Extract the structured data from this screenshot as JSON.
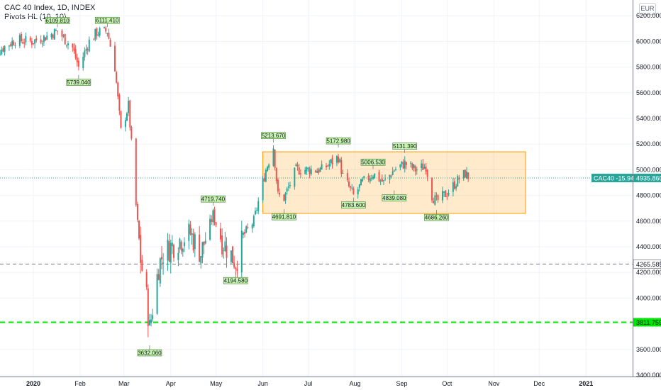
{
  "legend": {
    "title": "CAC 40 Index, 1D, INDEX",
    "indicator": "Pivots HL (10, 10)"
  },
  "currency": "EUR",
  "chart_data": {
    "type": "candlestick",
    "ylim": [
      3400,
      6300
    ],
    "y_ticks": [
      3400,
      3600,
      3800,
      4000,
      4200,
      4400,
      4600,
      4800,
      5000,
      5200,
      5400,
      5600,
      5800,
      6000,
      6200
    ],
    "y_tick_labels": [
      "3400.000",
      "3600.000",
      "3800.000",
      "4000.000",
      "4200.000",
      "4400.000",
      "4600.000",
      "4800.000",
      "5000.000",
      "5200.000",
      "5400.000",
      "5600.000",
      "5800.000",
      "6000.000",
      "6200.000"
    ],
    "x_ticks": [
      {
        "label": "2020",
        "date": "2020-01-01",
        "year": true
      },
      {
        "label": "Feb",
        "date": "2020-02-01"
      },
      {
        "label": "Mar",
        "date": "2020-03-01"
      },
      {
        "label": "Apr",
        "date": "2020-04-01"
      },
      {
        "label": "May",
        "date": "2020-05-01"
      },
      {
        "label": "Jun",
        "date": "2020-06-01"
      },
      {
        "label": "Jul",
        "date": "2020-07-01"
      },
      {
        "label": "Aug",
        "date": "2020-08-01"
      },
      {
        "label": "Sep",
        "date": "2020-09-01"
      },
      {
        "label": "Oct",
        "date": "2020-10-01"
      },
      {
        "label": "Nov",
        "date": "2020-11-01"
      },
      {
        "label": "Dec",
        "date": "2020-12-01"
      },
      {
        "label": "2021",
        "date": "2021-01-01",
        "year": true
      }
    ],
    "pivots": [
      {
        "date": "2020-01-17",
        "value": 6109.81,
        "label": "6109.810",
        "kind": "high"
      },
      {
        "date": "2020-01-31",
        "value": 5739.04,
        "label": "5739.040",
        "kind": "low"
      },
      {
        "date": "2020-02-19",
        "value": 6111.41,
        "label": "6111.410",
        "kind": "high"
      },
      {
        "date": "2020-03-18",
        "value": 3632.06,
        "label": "3632.060",
        "kind": "low"
      },
      {
        "date": "2020-04-29",
        "value": 4719.74,
        "label": "4719.740",
        "kind": "high"
      },
      {
        "date": "2020-05-14",
        "value": 4194.58,
        "label": "4194.580",
        "kind": "low"
      },
      {
        "date": "2020-06-08",
        "value": 5213.67,
        "label": "5213.670",
        "kind": "high"
      },
      {
        "date": "2020-06-15",
        "value": 4691.81,
        "label": "4691.810",
        "kind": "low"
      },
      {
        "date": "2020-07-21",
        "value": 5172.98,
        "label": "5172.980",
        "kind": "high"
      },
      {
        "date": "2020-07-31",
        "value": 4783.6,
        "label": "4783.600",
        "kind": "low"
      },
      {
        "date": "2020-08-13",
        "value": 5006.53,
        "label": "5006.530",
        "kind": "high"
      },
      {
        "date": "2020-08-27",
        "value": 4839.08,
        "label": "4839.080",
        "kind": "low"
      },
      {
        "date": "2020-09-03",
        "value": 5131.39,
        "label": "5131.390",
        "kind": "high"
      },
      {
        "date": "2020-09-24",
        "value": 4686.26,
        "label": "4686.260",
        "kind": "low"
      }
    ],
    "range_box": {
      "from": "2020-06-01",
      "to": "2020-11-22",
      "top": 5140,
      "bottom": 4660
    },
    "horizontal_lines": [
      {
        "value": 4265.585,
        "label": "4265.585",
        "color": "#787b86",
        "style": "dashed",
        "width": 1
      },
      {
        "value": 3811.759,
        "label": "3811.759",
        "color": "#00e600",
        "style": "dashed",
        "width": 2
      }
    ],
    "last_price": {
      "value": 4935.86,
      "label": "4935.860",
      "symbol_label": "CAC40 -15.94%",
      "color": "#26a69a"
    },
    "candle_anchors": [
      [
        "2019-12-02",
        5860
      ],
      [
        "2019-12-06",
        5900
      ],
      [
        "2019-12-13",
        5960
      ],
      [
        "2019-12-20",
        6010
      ],
      [
        "2019-12-31",
        6000
      ],
      [
        "2020-01-08",
        6030
      ],
      [
        "2020-01-17",
        6080
      ],
      [
        "2020-01-27",
        5950
      ],
      [
        "2020-01-31",
        5800
      ],
      [
        "2020-02-07",
        6000
      ],
      [
        "2020-02-12",
        6070
      ],
      [
        "2020-02-19",
        6080
      ],
      [
        "2020-02-24",
        5800
      ],
      [
        "2020-02-28",
        5300
      ],
      [
        "2020-03-04",
        5500
      ],
      [
        "2020-03-06",
        5200
      ],
      [
        "2020-03-09",
        4720
      ],
      [
        "2020-03-12",
        4300
      ],
      [
        "2020-03-16",
        4000
      ],
      [
        "2020-03-18",
        3760
      ],
      [
        "2020-03-24",
        4250
      ],
      [
        "2020-03-27",
        4350
      ],
      [
        "2020-04-06",
        4450
      ],
      [
        "2020-04-14",
        4500
      ],
      [
        "2020-04-21",
        4350
      ],
      [
        "2020-04-29",
        4650
      ],
      [
        "2020-05-05",
        4450
      ],
      [
        "2020-05-14",
        4280
      ],
      [
        "2020-05-20",
        4500
      ],
      [
        "2020-05-26",
        4600
      ],
      [
        "2020-06-03",
        5000
      ],
      [
        "2020-06-08",
        5180
      ],
      [
        "2020-06-11",
        4800
      ],
      [
        "2020-06-15",
        4780
      ],
      [
        "2020-06-23",
        5000
      ],
      [
        "2020-07-03",
        5000
      ],
      [
        "2020-07-10",
        5000
      ],
      [
        "2020-07-21",
        5100
      ],
      [
        "2020-07-24",
        4950
      ],
      [
        "2020-07-31",
        4800
      ],
      [
        "2020-08-06",
        4900
      ],
      [
        "2020-08-13",
        4970
      ],
      [
        "2020-08-20",
        4900
      ],
      [
        "2020-08-27",
        5000
      ],
      [
        "2020-09-03",
        5050
      ],
      [
        "2020-09-10",
        5000
      ],
      [
        "2020-09-17",
        5030
      ],
      [
        "2020-09-21",
        4800
      ],
      [
        "2020-09-24",
        4750
      ],
      [
        "2020-10-01",
        4820
      ],
      [
        "2020-10-09",
        4930
      ],
      [
        "2020-10-13",
        4970
      ],
      [
        "2020-10-16",
        4935
      ]
    ]
  }
}
